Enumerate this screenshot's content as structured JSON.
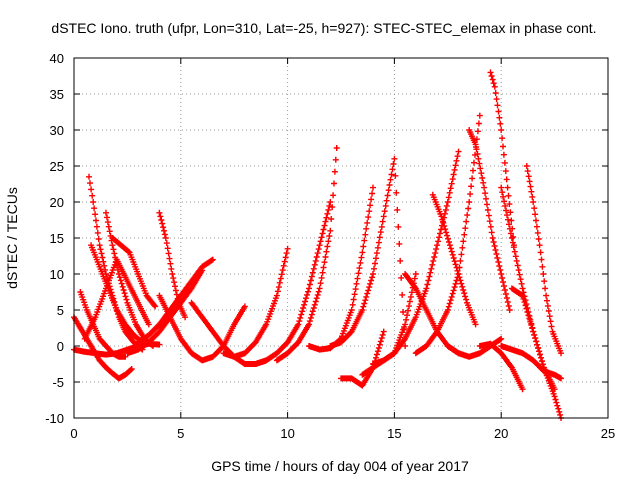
{
  "chart_data": {
    "type": "scatter",
    "title": "dSTEC Iono. truth (ufpr, Lon=310, Lat=-25, h=927): STEC-STEC_elemax in phase cont.",
    "xlabel": "GPS time / hours of day 004 of year 2017",
    "ylabel": "dSTEC  / TECUs",
    "xlim": [
      0,
      25
    ],
    "ylim": [
      -10,
      40
    ],
    "xticks": [
      0,
      5,
      10,
      15,
      20,
      25
    ],
    "yticks": [
      -10,
      -5,
      0,
      5,
      10,
      15,
      20,
      25,
      30,
      35,
      40
    ],
    "grid": true,
    "marker": "+",
    "color": "#ff0000",
    "series": [
      {
        "x": [
          0.0,
          0.3,
          0.6,
          0.9,
          1.2,
          1.5,
          1.8,
          2.1,
          2.4,
          2.7
        ],
        "y": [
          4,
          2.5,
          1,
          -0.5,
          -2,
          -3,
          -3.8,
          -4.5,
          -4,
          -3.2
        ]
      },
      {
        "x": [
          0.0,
          0.5,
          1.0,
          1.5,
          2.0,
          2.5,
          3.0,
          3.5,
          4.0
        ],
        "y": [
          -0.5,
          -0.8,
          -1,
          -1.2,
          -1,
          -0.5,
          0,
          0.3,
          0.2
        ]
      },
      {
        "x": [
          0.3,
          0.6,
          0.9,
          1.2,
          1.5,
          1.8,
          2.1,
          2.4
        ],
        "y": [
          7.5,
          5,
          3,
          1,
          0,
          -1,
          -1.5,
          -1.5
        ]
      },
      {
        "x": [
          0.7,
          0.9,
          1.2,
          1.5,
          1.8,
          2.1,
          2.4,
          2.8,
          3.2
        ],
        "y": [
          23.5,
          20,
          14,
          10,
          7,
          4,
          2,
          0.5,
          -0.5
        ]
      },
      {
        "x": [
          1.5,
          1.8,
          2.1,
          2.5,
          2.9,
          3.3,
          3.7
        ],
        "y": [
          18.5,
          14,
          10,
          6,
          3,
          1,
          0
        ]
      },
      {
        "x": [
          0.8,
          1.2,
          1.6,
          2.0,
          2.4,
          2.8,
          3.2
        ],
        "y": [
          14,
          11,
          8,
          5,
          3,
          1.5,
          0.5
        ]
      },
      {
        "x": [
          1.8,
          2.2,
          2.6,
          3.0,
          3.4,
          3.8
        ],
        "y": [
          15,
          14,
          13,
          10,
          7,
          5.5
        ]
      },
      {
        "x": [
          0.5,
          1.0,
          1.5,
          2.0,
          2.5,
          3.0,
          3.5
        ],
        "y": [
          1,
          4,
          8,
          12,
          9,
          6,
          3
        ]
      },
      {
        "x": [
          2.5,
          3.0,
          3.5,
          4.0,
          4.5,
          5.0,
          5.5,
          6.0
        ],
        "y": [
          -1,
          -0.5,
          0.5,
          2,
          4,
          6,
          8,
          10.5
        ]
      },
      {
        "x": [
          4.0,
          4.3,
          4.6,
          4.9,
          5.2
        ],
        "y": [
          18.5,
          15,
          10,
          6,
          4
        ]
      },
      {
        "x": [
          3.0,
          3.5,
          4.0,
          4.5,
          5.0,
          5.5,
          6.0,
          6.5
        ],
        "y": [
          0.5,
          1.5,
          3,
          5,
          7,
          9,
          11,
          12
        ]
      },
      {
        "x": [
          4.0,
          4.5,
          5.0,
          5.5,
          6.0,
          6.5,
          7.0,
          7.5,
          8.0
        ],
        "y": [
          7,
          4,
          1,
          -1,
          -2,
          -1.5,
          0,
          3,
          5.5
        ]
      },
      {
        "x": [
          5.5,
          6.0,
          6.5,
          7.0,
          7.5,
          8.0,
          8.5,
          9.0
        ],
        "y": [
          6,
          4,
          2,
          0,
          -1.5,
          -2.5,
          -2.5,
          -2
        ]
      },
      {
        "x": [
          7.0,
          7.5,
          8.0,
          8.5,
          9.0,
          9.5,
          10.0
        ],
        "y": [
          -1,
          -1.5,
          -1,
          0.5,
          3,
          7,
          13.5
        ]
      },
      {
        "x": [
          8.0,
          8.5,
          9.0,
          9.5,
          10.0,
          10.5,
          11.0,
          11.5,
          12.0
        ],
        "y": [
          -2.5,
          -2.5,
          -2,
          -1,
          0.5,
          3,
          8,
          14,
          20
        ]
      },
      {
        "x": [
          9.5,
          10.0,
          10.5,
          11.0,
          11.5,
          12.0,
          12.3
        ],
        "y": [
          -2,
          -1,
          0.5,
          3,
          8,
          16,
          27.5
        ]
      },
      {
        "x": [
          11.0,
          11.5,
          12.0,
          12.5,
          13.0,
          13.5,
          14.0
        ],
        "y": [
          0,
          -0.5,
          -0.3,
          1,
          5,
          13,
          22
        ]
      },
      {
        "x": [
          12.5,
          13.0,
          13.5,
          14.0,
          14.5
        ],
        "y": [
          -4.5,
          -4.5,
          -5.5,
          -3,
          2
        ]
      },
      {
        "x": [
          12.0,
          12.5,
          13.0,
          13.5,
          14.0,
          14.5,
          15.0,
          15.5
        ],
        "y": [
          0,
          0.5,
          2,
          5,
          10,
          18,
          26,
          0
        ]
      },
      {
        "x": [
          13.5,
          14.0,
          14.5,
          15.0,
          15.5,
          16.0
        ],
        "y": [
          -4,
          -3,
          -2,
          -1,
          3,
          10
        ]
      },
      {
        "x": [
          14.0,
          14.5,
          15.0,
          15.5,
          16.0,
          16.5,
          17.0,
          17.5,
          18.0
        ],
        "y": [
          -2.5,
          -2,
          -1,
          1,
          4,
          8,
          14,
          20,
          27
        ]
      },
      {
        "x": [
          15.5,
          16.0,
          16.5,
          17.0,
          17.5,
          18.0
        ],
        "y": [
          10,
          8,
          5,
          2,
          0,
          -1
        ]
      },
      {
        "x": [
          16.0,
          16.5,
          17.0,
          17.5,
          18.0,
          18.5,
          19.0
        ],
        "y": [
          -1,
          0,
          2,
          5,
          10,
          20,
          32
        ]
      },
      {
        "x": [
          16.8,
          17.2,
          17.6,
          18.0,
          18.4,
          18.8
        ],
        "y": [
          21,
          18,
          14,
          10,
          6,
          3
        ]
      },
      {
        "x": [
          17.5,
          18.0,
          18.5,
          19.0,
          19.5,
          20.0
        ],
        "y": [
          0,
          -1,
          -1.5,
          -1,
          0,
          1
        ]
      },
      {
        "x": [
          18.5,
          18.8,
          19.2,
          19.6,
          20.0,
          20.4
        ],
        "y": [
          30,
          28,
          22,
          15,
          10,
          5
        ]
      },
      {
        "x": [
          19.5,
          19.7,
          20.0,
          20.3,
          20.6
        ],
        "y": [
          38,
          36,
          30,
          22,
          14
        ]
      },
      {
        "x": [
          20.0,
          20.5,
          21.0,
          21.5,
          22.0,
          22.5
        ],
        "y": [
          22,
          15,
          8,
          2,
          -3,
          -6
        ]
      },
      {
        "x": [
          20.5,
          21.0,
          21.5,
          22.0,
          22.5,
          22.8
        ],
        "y": [
          8,
          7,
          2,
          -3,
          -7,
          -10
        ]
      },
      {
        "x": [
          21.2,
          21.5,
          21.8,
          22.1,
          22.4,
          22.8
        ],
        "y": [
          25,
          20,
          14,
          7,
          2,
          -1
        ]
      },
      {
        "x": [
          20.0,
          20.5,
          21.0,
          21.5,
          22.0,
          22.5,
          22.8
        ],
        "y": [
          0,
          -0.5,
          -1,
          -2,
          -3.5,
          -4,
          -4.5
        ]
      },
      {
        "x": [
          19.0,
          19.5,
          20.0,
          20.5,
          21.0
        ],
        "y": [
          0,
          0.3,
          -1,
          -3,
          -6
        ]
      }
    ]
  }
}
